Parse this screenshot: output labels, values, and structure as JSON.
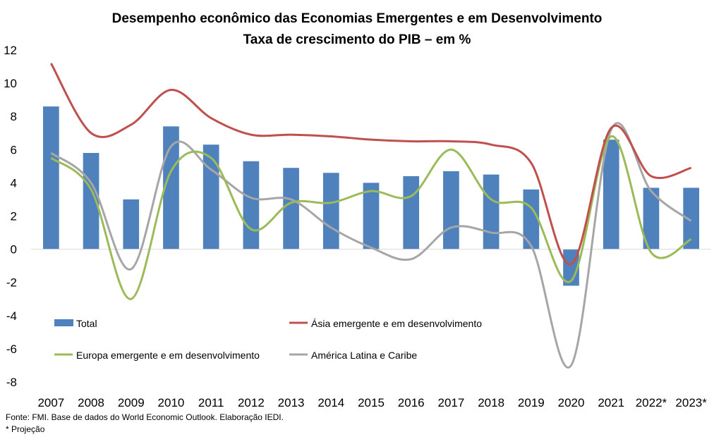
{
  "chart_data": {
    "type": "bar",
    "title": "Desempenho econômico das Economias Emergentes e em Desenvolvimento",
    "subtitle": "Taxa de crescimento do PIB – em %",
    "categories": [
      "2007",
      "2008",
      "2009",
      "2010",
      "2011",
      "2012",
      "2013",
      "2014",
      "2015",
      "2016",
      "2017",
      "2018",
      "2019",
      "2020",
      "2021",
      "2022*",
      "2023*"
    ],
    "ylim": [
      -8,
      12
    ],
    "yticks": [
      "12",
      "10",
      "8",
      "6",
      "4",
      "2",
      "0",
      "-2",
      "-4",
      "-6",
      "-8"
    ],
    "grid": false,
    "legend_position": "inside-bottom",
    "series": [
      {
        "name": "Total",
        "kind": "bar",
        "color": "#4f81bd",
        "values": [
          8.6,
          5.8,
          3.0,
          7.4,
          6.3,
          5.3,
          4.9,
          4.6,
          4.0,
          4.4,
          4.7,
          4.5,
          3.6,
          -2.2,
          6.6,
          3.7,
          3.7
        ]
      },
      {
        "name": "Ásia emergente e em desenvolvimento",
        "kind": "line",
        "color": "#c0504d",
        "values": [
          11.2,
          7.0,
          7.5,
          9.6,
          7.9,
          6.9,
          6.9,
          6.8,
          6.6,
          6.5,
          6.5,
          6.3,
          5.2,
          -0.9,
          7.3,
          4.4,
          4.9
        ]
      },
      {
        "name": "Europa emergente e em desenvolvimento",
        "kind": "line",
        "color": "#9bbb59",
        "values": [
          5.5,
          3.6,
          -3.0,
          4.7,
          5.5,
          1.2,
          2.8,
          2.8,
          3.5,
          3.2,
          6.0,
          3.0,
          2.5,
          -1.9,
          6.8,
          -0.2,
          0.6
        ]
      },
      {
        "name": "América Latina e Caribe",
        "kind": "line",
        "color": "#a6a6a6",
        "values": [
          5.8,
          4.0,
          -1.2,
          6.2,
          4.8,
          3.1,
          3.0,
          1.3,
          0.1,
          -0.6,
          1.3,
          1.0,
          0.2,
          -7.0,
          7.2,
          3.5,
          1.7
        ]
      }
    ]
  },
  "footer": {
    "source": "Fonte: FMI. Base de dados do World Economic Outlook. Elaboração IEDI.",
    "note": "* Projeção"
  }
}
